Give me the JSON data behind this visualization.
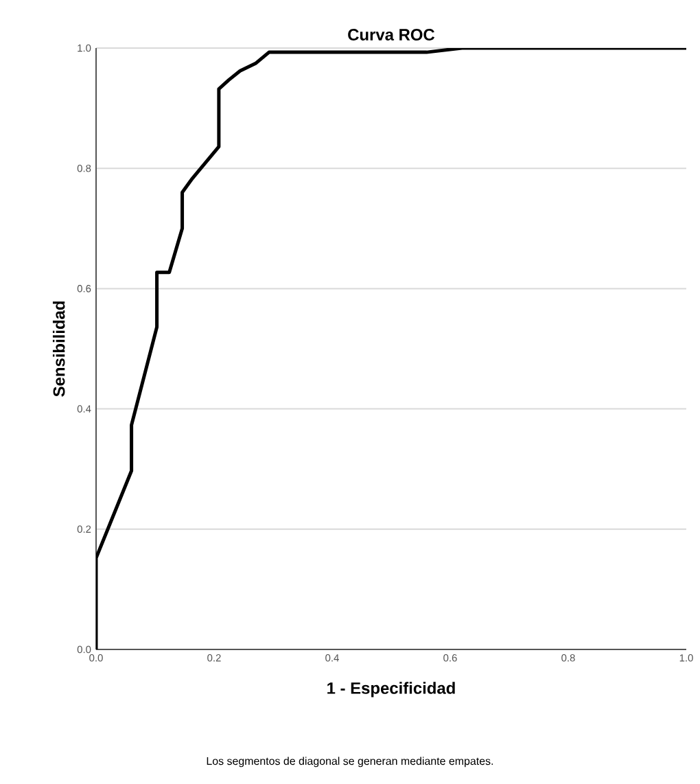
{
  "chart_data": {
    "type": "line",
    "title": "Curva ROC",
    "xlabel": "1 - Especificidad",
    "ylabel": "Sensibilidad",
    "annotations": [
      "Los segmentos de diagonal se generan mediante empates."
    ],
    "series": [
      {
        "color": "#000000",
        "x": [
          0,
          0,
          0.06,
          0.06,
          0.103,
          0.103,
          0.124,
          0.146,
          0.146,
          0.163,
          0.208,
          0.208,
          0.225,
          0.244,
          0.271,
          0.293,
          0.56,
          0.62,
          1.0
        ],
        "values": [
          0,
          0.152,
          0.297,
          0.373,
          0.536,
          0.627,
          0.627,
          0.7,
          0.76,
          0.783,
          0.836,
          0.932,
          0.947,
          0.962,
          0.975,
          0.993,
          0.993,
          1.0,
          1.0
        ]
      }
    ],
    "xlim": [
      0,
      1
    ],
    "ylim": [
      0,
      1
    ],
    "xticks": [
      {
        "value": 0,
        "label": "0.0"
      },
      {
        "value": 0.2,
        "label": "0.2"
      },
      {
        "value": 0.4,
        "label": "0.4"
      },
      {
        "value": 0.6,
        "label": "0.6"
      },
      {
        "value": 0.8,
        "label": "0.8"
      },
      {
        "value": 1,
        "label": "1.0"
      }
    ],
    "yticks": [
      {
        "value": 0,
        "label": "0.0"
      },
      {
        "value": 0.2,
        "label": "0.2"
      },
      {
        "value": 0.4,
        "label": "0.4"
      },
      {
        "value": 0.6,
        "label": "0.6"
      },
      {
        "value": 0.8,
        "label": "0.8"
      },
      {
        "value": 1,
        "label": "1.0"
      }
    ],
    "grid": "y",
    "marker": "none",
    "line_style": "solid"
  }
}
